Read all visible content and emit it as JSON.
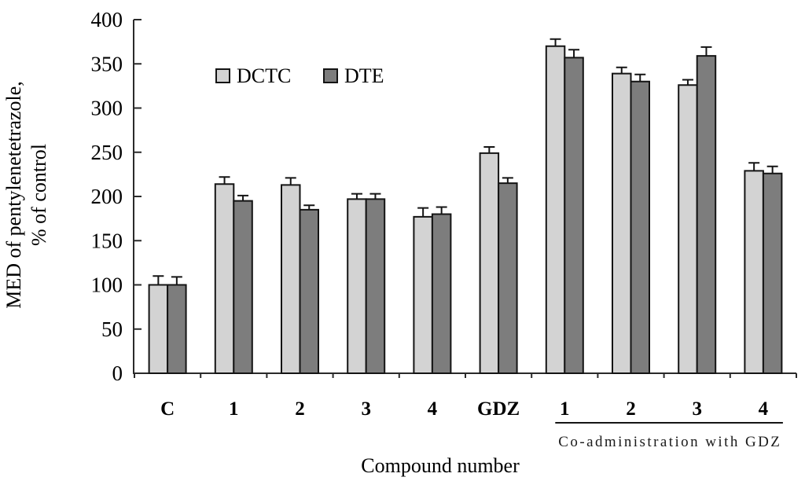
{
  "chart_data": {
    "type": "bar",
    "title": "",
    "xlabel": "Compound number",
    "ylabel_lines": [
      "MED of pentylenetetrazole,",
      "% of control"
    ],
    "ylim": [
      0,
      400
    ],
    "ytick_step": 50,
    "grid": false,
    "legend_position": "top-left-inside",
    "error_bars": "upper",
    "categories": [
      "C",
      "1",
      "2",
      "3",
      "4",
      "GDZ",
      "1",
      "2",
      "3",
      "4"
    ],
    "series": [
      {
        "name": "DCTC",
        "color": "#d3d3d3",
        "values": [
          100,
          214,
          213,
          197,
          177,
          249,
          370,
          339,
          326,
          229
        ],
        "errors": [
          10,
          8,
          8,
          6,
          10,
          7,
          8,
          7,
          6,
          9
        ]
      },
      {
        "name": "DTE",
        "color": "#7d7d7d",
        "values": [
          100,
          195,
          185,
          197,
          180,
          215,
          357,
          330,
          359,
          226
        ],
        "errors": [
          9,
          6,
          5,
          6,
          8,
          6,
          9,
          8,
          10,
          8
        ]
      }
    ],
    "group_annotation": {
      "label": "Co-administration with GDZ",
      "start_category_index": 6,
      "end_category_index": 9
    },
    "outline_color": "#141414",
    "axis_color": "#2a2a2a"
  }
}
